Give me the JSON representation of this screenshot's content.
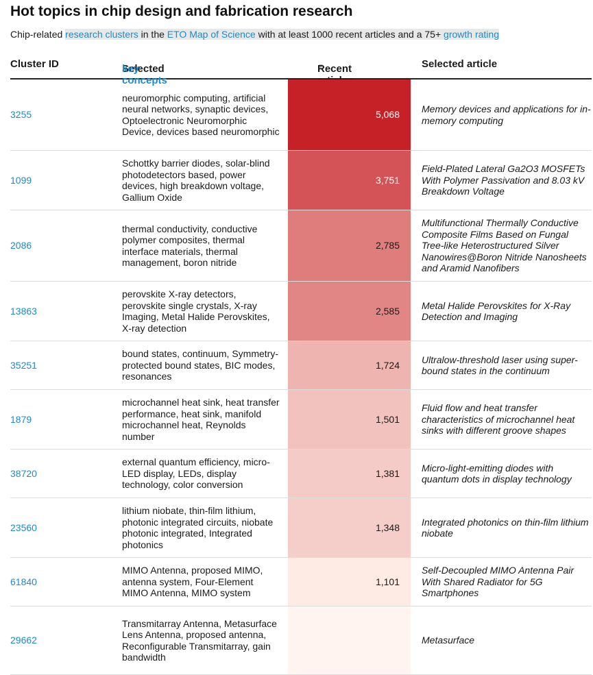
{
  "header": {
    "title": "Hot topics in chip design and fabrication research",
    "subtitle": {
      "prefix": "Chip-related ",
      "link1": "research clusters",
      "mid1": " in the ",
      "link2": "ETO Map of Science",
      "mid2": " with at least 1000 recent articles and a 75+ ",
      "link3": "growth rating"
    }
  },
  "columns": {
    "cluster_id": "Cluster ID",
    "concepts_prefix": "Selected ",
    "concepts_link": "key concepts",
    "recent": "Recent articles",
    "article": "Selected article"
  },
  "colors": {
    "accent": "#1f8ac8",
    "high": "#c62127",
    "low": "#fdebe4"
  },
  "chart_data": {
    "type": "table",
    "title": "Hot topics in chip design and fabrication research",
    "value_column": "Recent articles",
    "sort": "descending",
    "rows": [
      {
        "id": "3255",
        "concepts": "neuromorphic computing, artificial neural networks, synaptic devices, Optoelectronic Neuromorphic Device, devices based neuromorphic",
        "value": 5068,
        "value_label": "5,068",
        "article": "Memory devices and applications for in-memory computing"
      },
      {
        "id": "1099",
        "concepts": "Schottky barrier diodes, solar-blind photodetectors based, power devices, high breakdown voltage, Gallium Oxide",
        "value": 3751,
        "value_label": "3,751",
        "article": "Field-Plated Lateral Ga2O3 MOSFETs With Polymer Passivation and 8.03 kV Breakdown Voltage"
      },
      {
        "id": "2086",
        "concepts": "thermal conductivity, conductive polymer composites, thermal interface materials, thermal management, boron nitride",
        "value": 2785,
        "value_label": "2,785",
        "article": "Multifunctional Thermally Conductive Composite Films Based on Fungal Tree-like Heterostructured Silver Nanowires@Boron Nitride Nanosheets and Aramid Nanofibers"
      },
      {
        "id": "13863",
        "concepts": "perovskite X-ray detectors, perovskite single crystals, X-ray Imaging, Metal Halide Perovskites, X-ray detection",
        "value": 2585,
        "value_label": "2,585",
        "article": "Metal Halide Perovskites for X-Ray Detection and Imaging"
      },
      {
        "id": "35251",
        "concepts": "bound states, continuum, Symmetry-protected bound states, BIC modes, resonances",
        "value": 1724,
        "value_label": "1,724",
        "article": "Ultralow-threshold laser using super-bound states in the continuum"
      },
      {
        "id": "1879",
        "concepts": "microchannel heat sink, heat transfer performance, heat sink, manifold microchannel heat, Reynolds number",
        "value": 1501,
        "value_label": "1,501",
        "article": "Fluid flow and heat transfer characteristics of microchannel heat sinks with different groove shapes"
      },
      {
        "id": "38720",
        "concepts": "external quantum efficiency, micro-LED display, LEDs, display technology, color conversion",
        "value": 1381,
        "value_label": "1,381",
        "article": "Micro-light-emitting diodes with quantum dots in display technology"
      },
      {
        "id": "23560",
        "concepts": "lithium niobate, thin-film lithium, photonic integrated circuits, niobate photonic integrated, Integrated photonics",
        "value": 1348,
        "value_label": "1,348",
        "article": "Integrated photonics on thin-film lithium niobate"
      },
      {
        "id": "61840",
        "concepts": "MIMO Antenna, proposed MIMO, antenna system, Four-Element MIMO Antenna, MIMO system",
        "value": 1101,
        "value_label": "1,101",
        "article": "Self-Decoupled MIMO Antenna Pair With Shared Radiator for 5G Smartphones"
      },
      {
        "id": "29662",
        "concepts": "Transmitarray Antenna, Metasurface Lens Antenna, proposed antenna, Reconfigurable Transmitarray, gain bandwidth",
        "value": null,
        "value_label": "",
        "article": "Metasurface"
      }
    ]
  }
}
